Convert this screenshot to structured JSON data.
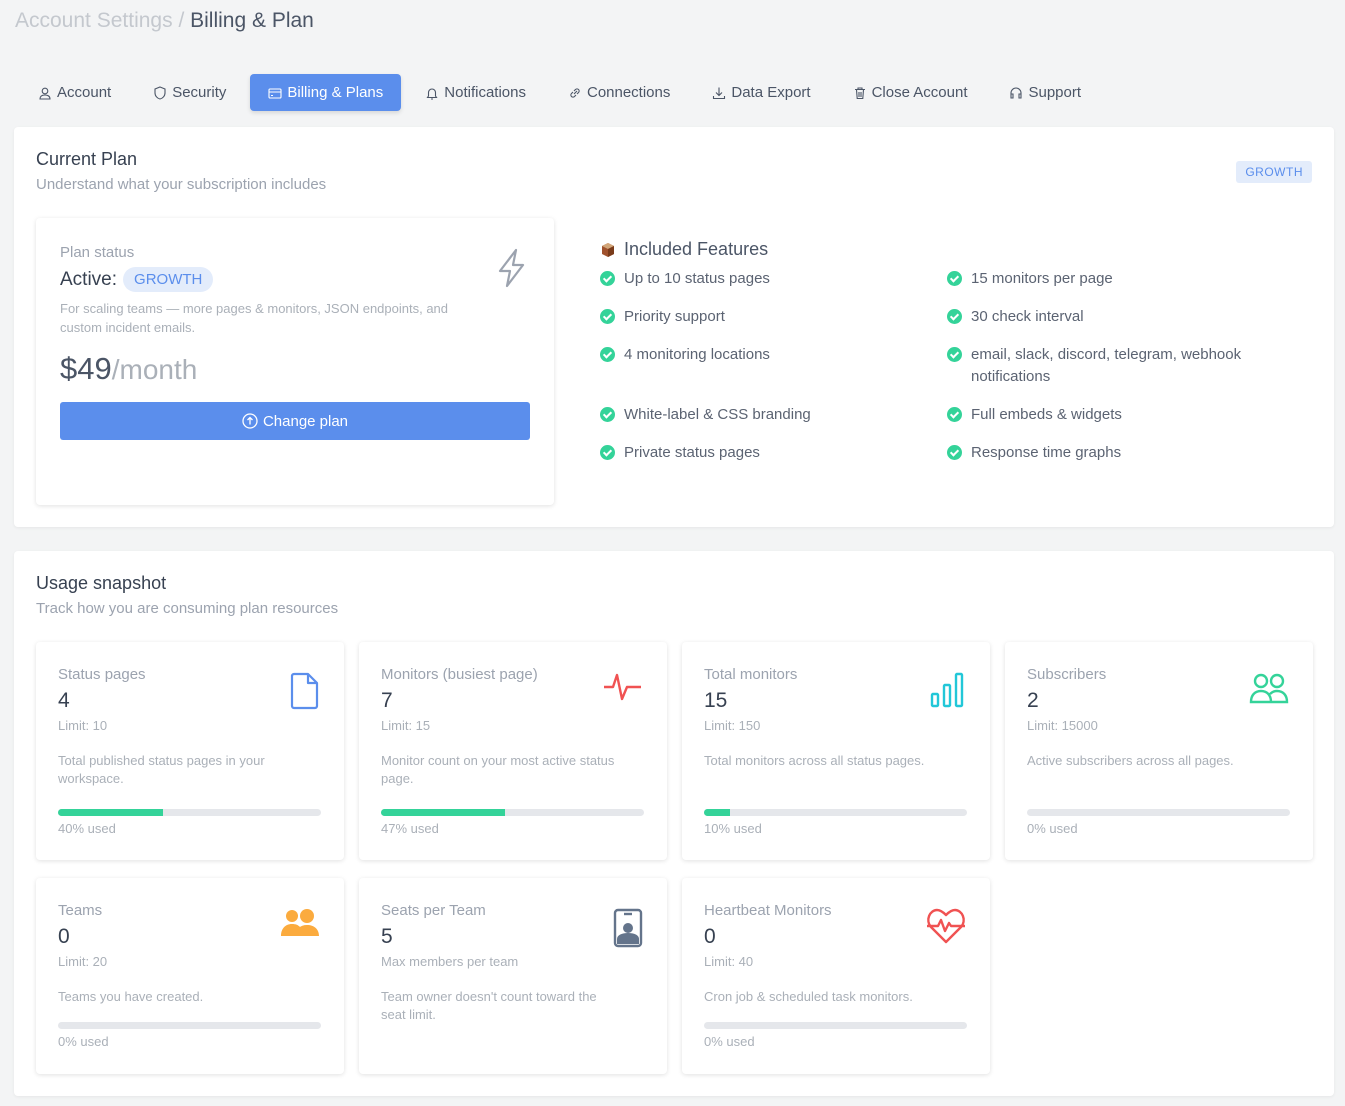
{
  "breadcrumb": {
    "parent": "Account Settings",
    "separator": "/",
    "current": "Billing & Plan"
  },
  "tabs": [
    {
      "label": "Account",
      "icon": "user-icon"
    },
    {
      "label": "Security",
      "icon": "shield-icon"
    },
    {
      "label": "Billing & Plans",
      "icon": "credit-card-icon",
      "active": true
    },
    {
      "label": "Notifications",
      "icon": "bell-icon"
    },
    {
      "label": "Connections",
      "icon": "link-icon"
    },
    {
      "label": "Data Export",
      "icon": "download-icon"
    },
    {
      "label": "Close Account",
      "icon": "trash-icon"
    },
    {
      "label": "Support",
      "icon": "headset-icon"
    }
  ],
  "current_plan": {
    "title": "Current Plan",
    "subtitle": "Understand what your subscription includes",
    "badge": "GROWTH",
    "status_label": "Plan status",
    "active_label": "Active:",
    "plan_name": "GROWTH",
    "description": "For scaling teams — more pages & monitors, JSON endpoints, and custom incident emails.",
    "price": "$49",
    "period": "/month",
    "change_button": "Change plan"
  },
  "features": {
    "title": "Included Features",
    "items": [
      "Up to 10 status pages",
      "15 monitors per page",
      "Priority support",
      "30 check interval",
      "4 monitoring locations",
      "email, slack, discord, telegram, webhook notifications",
      "White-label & CSS branding",
      "Full embeds & widgets",
      "Private status pages",
      "Response time graphs"
    ]
  },
  "usage": {
    "title": "Usage snapshot",
    "subtitle": "Track how you are consuming plan resources",
    "cards": [
      {
        "title": "Status pages",
        "value": "4",
        "limit": "Limit: 10",
        "desc": "Total published status pages in your workspace.",
        "percent": 40,
        "used": "40% used",
        "icon": "file-icon",
        "color": "#5b8eec"
      },
      {
        "title": "Monitors (busiest page)",
        "value": "7",
        "limit": "Limit: 15",
        "desc": "Monitor count on your most active status page.",
        "percent": 47,
        "used": "47% used",
        "icon": "activity-icon",
        "color": "#f05252"
      },
      {
        "title": "Total monitors",
        "value": "15",
        "limit": "Limit: 150",
        "desc": "Total monitors across all status pages.",
        "percent": 10,
        "used": "10% used",
        "icon": "bar-chart-icon",
        "color": "#22c7d8"
      },
      {
        "title": "Subscribers",
        "value": "2",
        "limit": "Limit: 15000",
        "desc": "Active subscribers across all pages.",
        "percent": 0,
        "used": "0% used",
        "icon": "users-icon",
        "color": "#34d399"
      },
      {
        "title": "Teams",
        "value": "0",
        "limit": "Limit: 20",
        "desc": "Teams you have created.",
        "percent": 0,
        "used": "0% used",
        "icon": "team-icon",
        "color": "#fbab3e"
      },
      {
        "title": "Seats per Team",
        "value": "5",
        "limit": "Max members per team",
        "desc": "Team owner doesn't count toward the seat limit.",
        "icon": "id-badge-icon",
        "color": "#64748b"
      },
      {
        "title": "Heartbeat Monitors",
        "value": "0",
        "limit": "Limit: 40",
        "desc": "Cron job & scheduled task monitors.",
        "percent": 0,
        "used": "0% used",
        "icon": "heartbeat-icon",
        "color": "#f05252"
      }
    ]
  }
}
